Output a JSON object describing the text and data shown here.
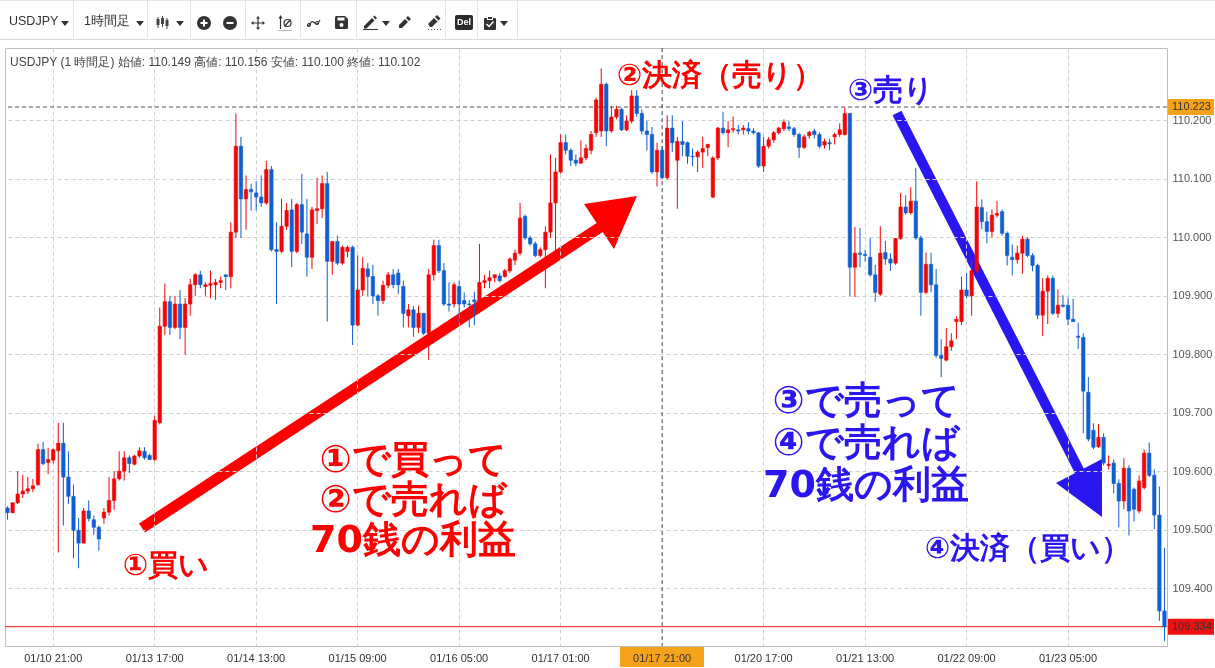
{
  "chart_data": {
    "type": "candlestick",
    "title": "USDJPY (1 時間足) 始値: 110.149 高値: 110.156 安値: 110.100 終値: 110.102",
    "categories": [
      null,
      null,
      null,
      null,
      null,
      null,
      null,
      null,
      null,
      "01/10 21:00",
      null,
      null,
      null,
      null,
      null,
      null,
      null,
      null,
      null,
      null,
      null,
      null,
      null,
      null,
      null,
      null,
      null,
      null,
      null,
      "01/13 17:00",
      null,
      null,
      null,
      null,
      null,
      null,
      null,
      null,
      null,
      null,
      null,
      null,
      null,
      null,
      null,
      null,
      null,
      null,
      null,
      "01/14 13:00",
      null,
      null,
      null,
      null,
      null,
      null,
      null,
      null,
      null,
      null,
      null,
      null,
      null,
      null,
      null,
      null,
      null,
      null,
      null,
      "01/15 09:00",
      null,
      null,
      null,
      null,
      null,
      null,
      null,
      null,
      null,
      null,
      null,
      null,
      null,
      null,
      null,
      null,
      null,
      null,
      null,
      "01/16 05:00",
      null,
      null,
      null,
      null,
      null,
      null,
      null,
      null,
      null,
      null,
      null,
      null,
      null,
      null,
      null,
      null,
      null,
      null,
      null,
      "01/17 01:00",
      null,
      null,
      null,
      null,
      null,
      null,
      null,
      null,
      null,
      null,
      null,
      null,
      null,
      null,
      null,
      null,
      null,
      null,
      null,
      "01/17 21:00",
      null,
      null,
      null,
      null,
      null,
      null,
      null,
      null,
      null,
      null,
      null,
      null,
      null,
      null,
      null,
      null,
      null,
      null,
      null,
      "01/20 17:00",
      null,
      null,
      null,
      null,
      null,
      null,
      null,
      null,
      null,
      null,
      null,
      null,
      null,
      null,
      null,
      null,
      null,
      null,
      null,
      "01/21 13:00",
      null,
      null,
      null,
      null,
      null,
      null,
      null,
      null,
      null,
      null,
      null,
      null,
      null,
      null,
      null,
      null,
      null,
      null,
      null,
      "01/22 09:00",
      null,
      null,
      null,
      null,
      null,
      null,
      null,
      null,
      null,
      null,
      null,
      null,
      null,
      null,
      null,
      null,
      null,
      null,
      null,
      "01/23 05:00",
      null,
      null,
      null,
      null,
      null,
      null,
      null,
      null,
      null,
      null,
      null,
      null,
      null,
      null,
      null,
      null,
      null,
      null,
      null
    ],
    "ohlc": [
      [
        109.537,
        109.54,
        109.517,
        109.529
      ],
      [
        109.529,
        109.547,
        109.528,
        109.546
      ],
      [
        109.546,
        109.6,
        109.544,
        109.561
      ],
      [
        109.561,
        109.594,
        109.554,
        109.566
      ],
      [
        109.566,
        109.59,
        109.561,
        109.57
      ],
      [
        109.57,
        109.587,
        109.564,
        109.575
      ],
      [
        109.577,
        109.647,
        109.575,
        109.637
      ],
      [
        109.637,
        109.65,
        109.61,
        109.613
      ],
      [
        109.615,
        109.64,
        109.595,
        109.62
      ],
      [
        109.619,
        109.639,
        109.613,
        109.637
      ],
      [
        109.635,
        109.683,
        109.461,
        109.648
      ],
      [
        109.648,
        109.683,
        109.507,
        109.59
      ],
      [
        109.59,
        109.634,
        109.544,
        109.557
      ],
      [
        109.557,
        109.577,
        109.451,
        109.499
      ],
      [
        109.499,
        109.52,
        109.434,
        109.477
      ],
      [
        109.477,
        109.537,
        109.477,
        109.532
      ],
      [
        109.532,
        109.55,
        109.514,
        109.519
      ],
      [
        109.517,
        109.524,
        109.491,
        109.504
      ],
      [
        109.504,
        109.507,
        109.464,
        109.484
      ],
      [
        109.52,
        109.537,
        109.51,
        109.53
      ],
      [
        109.53,
        109.59,
        109.524,
        109.55
      ],
      [
        109.55,
        109.6,
        109.534,
        109.587
      ],
      [
        109.587,
        109.634,
        109.584,
        109.6
      ],
      [
        109.6,
        109.634,
        109.584,
        109.623
      ],
      [
        109.623,
        109.627,
        109.597,
        109.613
      ],
      [
        109.612,
        109.628,
        109.61,
        109.626
      ],
      [
        109.626,
        109.641,
        109.623,
        109.635
      ],
      [
        109.634,
        109.641,
        109.62,
        109.623
      ],
      [
        109.627,
        109.63,
        109.619,
        109.62
      ],
      [
        109.62,
        109.695,
        109.617,
        109.687
      ],
      [
        109.683,
        109.88,
        109.68,
        109.848
      ],
      [
        109.848,
        109.921,
        109.833,
        109.89
      ],
      [
        109.89,
        109.9,
        109.833,
        109.846
      ],
      [
        109.846,
        109.9,
        109.843,
        109.886
      ],
      [
        109.886,
        109.91,
        109.826,
        109.846
      ],
      [
        109.846,
        109.896,
        109.8,
        109.886
      ],
      [
        109.886,
        109.929,
        109.866,
        109.919
      ],
      [
        109.919,
        109.939,
        109.9,
        109.936
      ],
      [
        109.936,
        109.943,
        109.913,
        109.919
      ],
      [
        109.916,
        109.923,
        109.9,
        109.919
      ],
      [
        109.918,
        109.943,
        109.896,
        109.921
      ],
      [
        109.919,
        109.929,
        109.893,
        109.923
      ],
      [
        109.923,
        109.933,
        109.913,
        109.926
      ],
      [
        109.936,
        109.936,
        109.91,
        109.933
      ],
      [
        109.933,
        110.026,
        109.913,
        110.009
      ],
      [
        110.009,
        110.212,
        109.999,
        110.156
      ],
      [
        110.156,
        110.172,
        109.999,
        110.066
      ],
      [
        110.066,
        110.106,
        110.013,
        110.082
      ],
      [
        110.082,
        110.092,
        110.046,
        110.078
      ],
      [
        110.076,
        110.096,
        110.046,
        110.069
      ],
      [
        110.069,
        110.106,
        110.052,
        110.059
      ],
      [
        110.059,
        110.131,
        110.056,
        110.116
      ],
      [
        110.116,
        110.122,
        109.976,
        109.979
      ],
      [
        109.979,
        110.026,
        109.886,
        109.976
      ],
      [
        109.976,
        110.066,
        109.973,
        110.019
      ],
      [
        110.019,
        110.059,
        110.013,
        110.046
      ],
      [
        110.047,
        110.066,
        109.949,
        109.976
      ],
      [
        109.976,
        110.059,
        109.973,
        110.056
      ],
      [
        110.056,
        110.109,
        109.989,
        110.009
      ],
      [
        110.006,
        110.066,
        109.933,
        109.966
      ],
      [
        109.966,
        110.052,
        109.946,
        110.047
      ],
      [
        110.046,
        110.102,
        110.023,
        110.049
      ],
      [
        110.049,
        110.106,
        110.033,
        110.092
      ],
      [
        110.092,
        110.112,
        109.856,
        109.959
      ],
      [
        109.959,
        109.993,
        109.936,
        109.993
      ],
      [
        109.993,
        110.003,
        109.953,
        109.956
      ],
      [
        109.956,
        109.986,
        109.953,
        109.983
      ],
      [
        109.976,
        109.986,
        109.966,
        109.983
      ],
      [
        109.983,
        109.986,
        109.816,
        109.85
      ],
      [
        109.85,
        109.969,
        109.848,
        109.91
      ],
      [
        109.91,
        109.966,
        109.9,
        109.947
      ],
      [
        109.946,
        109.956,
        109.9,
        109.933
      ],
      [
        109.933,
        109.953,
        109.886,
        109.9
      ],
      [
        109.9,
        109.903,
        109.866,
        109.892
      ],
      [
        109.892,
        109.926,
        109.886,
        109.918
      ],
      [
        109.918,
        109.941,
        109.913,
        109.936
      ],
      [
        109.936,
        109.946,
        109.913,
        109.919
      ],
      [
        109.939,
        109.946,
        109.903,
        109.919
      ],
      [
        109.916,
        109.926,
        109.846,
        109.87
      ],
      [
        109.866,
        109.886,
        109.846,
        109.876
      ],
      [
        109.876,
        109.883,
        109.83,
        109.846
      ],
      [
        109.846,
        109.883,
        109.836,
        109.87
      ],
      [
        109.87,
        109.87,
        109.833,
        109.836
      ],
      [
        109.836,
        109.946,
        109.79,
        109.936
      ],
      [
        109.936,
        109.996,
        109.926,
        109.986
      ],
      [
        109.986,
        109.996,
        109.939,
        109.943
      ],
      [
        109.943,
        109.956,
        109.883,
        109.886
      ],
      [
        109.886,
        109.923,
        109.873,
        109.884
      ],
      [
        109.886,
        109.923,
        109.88,
        109.919
      ],
      [
        109.916,
        109.926,
        109.853,
        109.886
      ],
      [
        109.892,
        109.906,
        109.88,
        109.886
      ],
      [
        109.886,
        109.893,
        109.846,
        109.885
      ],
      [
        109.893,
        109.907,
        109.85,
        109.89
      ],
      [
        109.89,
        109.989,
        109.87,
        109.923
      ],
      [
        109.923,
        109.936,
        109.913,
        109.926
      ],
      [
        109.926,
        109.943,
        109.913,
        109.931
      ],
      [
        109.931,
        109.936,
        109.923,
        109.936
      ],
      [
        109.934,
        109.939,
        109.923,
        109.926
      ],
      [
        109.933,
        109.946,
        109.931,
        109.943
      ],
      [
        109.943,
        109.966,
        109.939,
        109.963
      ],
      [
        109.961,
        109.979,
        109.953,
        109.973
      ],
      [
        109.973,
        110.059,
        109.969,
        110.033
      ],
      [
        110.036,
        110.039,
        109.996,
        109.999
      ],
      [
        109.999,
        110.003,
        109.986,
        109.989
      ],
      [
        109.989,
        109.993,
        109.966,
        109.969
      ],
      [
        109.969,
        109.983,
        109.966,
        109.979
      ],
      [
        109.979,
        110.019,
        109.913,
        110.009
      ],
      [
        110.009,
        110.142,
        109.999,
        110.059
      ],
      [
        110.059,
        110.136,
        109.956,
        110.112
      ],
      [
        110.112,
        110.176,
        110.109,
        110.162
      ],
      [
        110.162,
        110.176,
        110.142,
        110.149
      ],
      [
        110.149,
        110.152,
        110.122,
        110.132
      ],
      [
        110.132,
        110.142,
        110.122,
        110.127
      ],
      [
        110.127,
        110.166,
        110.126,
        110.136
      ],
      [
        110.136,
        110.159,
        110.132,
        110.152
      ],
      [
        110.149,
        110.182,
        110.142,
        110.176
      ],
      [
        110.179,
        110.239,
        110.172,
        110.235
      ],
      [
        110.182,
        110.289,
        110.172,
        110.262
      ],
      [
        110.262,
        110.265,
        110.156,
        110.182
      ],
      [
        110.182,
        110.225,
        110.179,
        110.206
      ],
      [
        110.206,
        110.225,
        110.202,
        110.219
      ],
      [
        110.219,
        110.222,
        110.182,
        110.184
      ],
      [
        110.184,
        110.209,
        110.182,
        110.199
      ],
      [
        110.199,
        110.252,
        110.195,
        110.242
      ],
      [
        110.242,
        110.252,
        110.206,
        110.212
      ],
      [
        110.212,
        110.219,
        110.176,
        110.182
      ],
      [
        110.182,
        110.199,
        110.149,
        110.176
      ],
      [
        110.176,
        110.189,
        110.109,
        110.112
      ],
      [
        110.112,
        110.162,
        110.087,
        110.149
      ],
      [
        110.149,
        110.156,
        110.1,
        110.102
      ],
      [
        110.102,
        110.209,
        110.099,
        110.187
      ],
      [
        110.187,
        110.209,
        110.146,
        110.162
      ],
      [
        110.132,
        110.172,
        110.049,
        110.164
      ],
      [
        110.164,
        110.199,
        110.139,
        110.159
      ],
      [
        110.162,
        110.164,
        110.126,
        110.139
      ],
      [
        110.139,
        110.152,
        110.122,
        110.138
      ],
      [
        110.138,
        110.149,
        110.112,
        110.146
      ],
      [
        110.146,
        110.172,
        110.119,
        110.152
      ],
      [
        110.154,
        110.16,
        110.139,
        110.159
      ],
      [
        110.069,
        110.139,
        110.067,
        110.136
      ],
      [
        110.136,
        110.189,
        110.132,
        110.187
      ],
      [
        110.187,
        110.215,
        110.176,
        110.179
      ],
      [
        110.179,
        110.199,
        110.154,
        110.184
      ],
      [
        110.184,
        110.207,
        110.179,
        110.186
      ],
      [
        110.184,
        110.192,
        110.176,
        110.182
      ],
      [
        110.184,
        110.192,
        110.176,
        110.187
      ],
      [
        110.186,
        110.197,
        110.176,
        110.182
      ],
      [
        110.182,
        110.187,
        110.176,
        110.179
      ],
      [
        110.179,
        110.18,
        110.119,
        110.122
      ],
      [
        110.122,
        110.172,
        110.112,
        110.156
      ],
      [
        110.156,
        110.172,
        110.152,
        110.167
      ],
      [
        110.167,
        110.182,
        110.162,
        110.179
      ],
      [
        110.179,
        110.189,
        110.176,
        110.187
      ],
      [
        110.186,
        110.202,
        110.182,
        110.197
      ],
      [
        110.189,
        110.199,
        110.182,
        110.186
      ],
      [
        110.186,
        110.189,
        110.172,
        110.176
      ],
      [
        110.176,
        110.179,
        110.136,
        110.154
      ],
      [
        110.154,
        110.176,
        110.151,
        110.172
      ],
      [
        110.174,
        110.182,
        110.169,
        110.18
      ],
      [
        110.182,
        110.186,
        110.169,
        110.176
      ],
      [
        110.176,
        110.18,
        110.152,
        110.156
      ],
      [
        110.158,
        110.169,
        110.152,
        110.164
      ],
      [
        110.162,
        110.169,
        110.149,
        110.16
      ],
      [
        110.172,
        110.179,
        110.159,
        110.176
      ],
      [
        110.176,
        110.195,
        110.172,
        110.184
      ],
      [
        110.176,
        110.222,
        110.174,
        110.212
      ],
      [
        110.212,
        110.213,
        109.9,
        109.949
      ],
      [
        109.949,
        110.018,
        109.898,
        109.973
      ],
      [
        109.973,
        110.016,
        109.949,
        109.971
      ],
      [
        109.971,
        109.979,
        109.959,
        109.969
      ],
      [
        109.966,
        109.999,
        109.933,
        109.936
      ],
      [
        109.936,
        109.953,
        109.89,
        109.906
      ],
      [
        109.903,
        110.019,
        109.9,
        109.973
      ],
      [
        109.974,
        109.994,
        109.953,
        109.963
      ],
      [
        109.963,
        109.973,
        109.943,
        109.956
      ],
      [
        109.956,
        109.999,
        109.953,
        109.998
      ],
      [
        109.998,
        110.076,
        109.996,
        110.052
      ],
      [
        110.052,
        110.072,
        110.039,
        110.042
      ],
      [
        110.042,
        110.086,
        110.039,
        110.062
      ],
      [
        110.062,
        110.119,
        109.996,
        109.999
      ],
      [
        109.999,
        110.003,
        109.866,
        109.906
      ],
      [
        109.906,
        109.974,
        109.903,
        109.954
      ],
      [
        109.954,
        109.974,
        109.906,
        109.919
      ],
      [
        109.919,
        109.946,
        109.794,
        109.798
      ],
      [
        109.798,
        109.826,
        109.761,
        109.793
      ],
      [
        109.79,
        109.845,
        109.788,
        109.813
      ],
      [
        109.813,
        109.836,
        109.806,
        109.823
      ],
      [
        109.856,
        109.865,
        109.826,
        109.86
      ],
      [
        109.856,
        109.933,
        109.85,
        109.91
      ],
      [
        109.91,
        109.939,
        109.896,
        109.9
      ],
      [
        109.9,
        109.961,
        109.866,
        109.943
      ],
      [
        109.943,
        110.096,
        109.939,
        110.052
      ],
      [
        110.051,
        110.065,
        110.014,
        110.027
      ],
      [
        110.027,
        110.044,
        109.99,
        110.01
      ],
      [
        110.01,
        110.048,
        110.0,
        110.038
      ],
      [
        110.038,
        110.062,
        110.034,
        110.041
      ],
      [
        110.044,
        110.048,
        110.003,
        110.007
      ],
      [
        110.007,
        110.01,
        109.952,
        109.969
      ],
      [
        109.966,
        109.988,
        109.935,
        109.962
      ],
      [
        109.962,
        109.986,
        109.955,
        109.973
      ],
      [
        109.973,
        110.003,
        109.938,
        109.997
      ],
      [
        109.997,
        110.0,
        109.966,
        109.969
      ],
      [
        109.969,
        109.973,
        109.942,
        109.952
      ],
      [
        109.952,
        109.955,
        109.86,
        109.867
      ],
      [
        109.867,
        109.93,
        109.831,
        109.908
      ],
      [
        109.908,
        109.935,
        109.852,
        109.93
      ],
      [
        109.93,
        109.935,
        109.867,
        109.87
      ],
      [
        109.87,
        109.911,
        109.863,
        109.884
      ],
      [
        109.884,
        109.901,
        109.88,
        109.882
      ],
      [
        109.884,
        109.897,
        109.85,
        109.86
      ],
      [
        109.86,
        109.895,
        109.856,
        109.856
      ],
      [
        109.831,
        109.854,
        109.809,
        109.829
      ],
      [
        109.829,
        109.836,
        109.665,
        109.737
      ],
      [
        109.735,
        109.761,
        109.651,
        109.655
      ],
      [
        109.67,
        109.682,
        109.638,
        109.641
      ],
      [
        109.642,
        109.681,
        109.64,
        109.658
      ],
      [
        109.658,
        109.665,
        109.61,
        109.614
      ],
      [
        109.61,
        109.627,
        109.603,
        109.612
      ],
      [
        109.614,
        109.62,
        109.562,
        109.579
      ],
      [
        109.579,
        109.586,
        109.504,
        109.549
      ],
      [
        109.549,
        109.622,
        109.535,
        109.605
      ],
      [
        109.605,
        109.61,
        109.49,
        109.532
      ],
      [
        109.569,
        109.572,
        109.514,
        109.535
      ],
      [
        109.532,
        109.593,
        109.528,
        109.583
      ],
      [
        109.572,
        109.637,
        109.569,
        109.631
      ],
      [
        109.631,
        109.649,
        109.59,
        109.593
      ],
      [
        109.593,
        109.603,
        109.501,
        109.525
      ],
      [
        109.525,
        109.574,
        109.344,
        109.361
      ],
      [
        109.361,
        109.469,
        109.309,
        109.334
      ]
    ],
    "colors": [
      "#0f5fd2",
      "#f20505",
      "#f20505",
      "#f20505",
      "#f20505",
      "#f20505",
      "#f20505",
      "#0f5fd2",
      "#f20505",
      "#f20505",
      "#f20505",
      "#0f5fd2",
      "#0f5fd2",
      "#0f5fd2",
      "#0f5fd2",
      "#f20505",
      "#0f5fd2",
      "#0f5fd2",
      "#0f5fd2",
      "#f20505",
      "#f20505",
      "#f20505",
      "#f20505",
      "#f20505",
      "#0f5fd2",
      "#f20505",
      "#f20505",
      "#0f5fd2",
      "#0f5fd2",
      "#f20505",
      "#f20505",
      "#f20505",
      "#0f5fd2",
      "#f20505",
      "#0f5fd2",
      "#f20505",
      "#f20505",
      "#f20505",
      "#0f5fd2",
      "#f20505",
      "#f20505",
      "#f20505",
      "#f20505",
      "#0f5fd2",
      "#f20505",
      "#f20505",
      "#0f5fd2",
      "#f20505",
      "#0f5fd2",
      "#0f5fd2",
      "#0f5fd2",
      "#f20505",
      "#0f5fd2",
      "#0f5fd2",
      "#f20505",
      "#f20505",
      "#0f5fd2",
      "#f20505",
      "#0f5fd2",
      "#0f5fd2",
      "#f20505",
      "#f20505",
      "#f20505",
      "#0f5fd2",
      "#f20505",
      "#0f5fd2",
      "#f20505",
      "#f20505",
      "#0f5fd2",
      "#f20505",
      "#f20505",
      "#0f5fd2",
      "#0f5fd2",
      "#0f5fd2",
      "#f20505",
      "#f20505",
      "#0f5fd2",
      "#0f5fd2",
      "#0f5fd2",
      "#f20505",
      "#0f5fd2",
      "#f20505",
      "#0f5fd2",
      "#f20505",
      "#f20505",
      "#0f5fd2",
      "#0f5fd2",
      "#0f5fd2",
      "#f20505",
      "#0f5fd2",
      "#0f5fd2",
      "#0f5fd2",
      "#0f5fd2",
      "#f20505",
      "#f20505",
      "#f20505",
      "#f20505",
      "#0f5fd2",
      "#f20505",
      "#f20505",
      "#f20505",
      "#f20505",
      "#0f5fd2",
      "#0f5fd2",
      "#0f5fd2",
      "#f20505",
      "#f20505",
      "#f20505",
      "#f20505",
      "#f20505",
      "#0f5fd2",
      "#0f5fd2",
      "#0f5fd2",
      "#f20505",
      "#f20505",
      "#f20505",
      "#f20505",
      "#f20505",
      "#0f5fd2",
      "#f20505",
      "#f20505",
      "#0f5fd2",
      "#f20505",
      "#f20505",
      "#0f5fd2",
      "#0f5fd2",
      "#0f5fd2",
      "#0f5fd2",
      "#f20505",
      "#0f5fd2",
      "#f20505",
      "#0f5fd2",
      "#f20505",
      "#0f5fd2",
      "#0f5fd2",
      "#0f5fd2",
      "#f20505",
      "#f20505",
      "#f20505",
      "#f20505",
      "#f20505",
      "#0f5fd2",
      "#f20505",
      "#f20505",
      "#0f5fd2",
      "#f20505",
      "#0f5fd2",
      "#0f5fd2",
      "#0f5fd2",
      "#f20505",
      "#f20505",
      "#f20505",
      "#f20505",
      "#f20505",
      "#0f5fd2",
      "#0f5fd2",
      "#0f5fd2",
      "#f20505",
      "#f20505",
      "#0f5fd2",
      "#0f5fd2",
      "#f20505",
      "#0f5fd2",
      "#f20505",
      "#f20505",
      "#f20505",
      "#0f5fd2",
      "#f20505",
      "#0f5fd2",
      "#0f5fd2",
      "#0f5fd2",
      "#0f5fd2",
      "#f20505",
      "#0f5fd2",
      "#0f5fd2",
      "#f20505",
      "#f20505",
      "#0f5fd2",
      "#f20505",
      "#0f5fd2",
      "#0f5fd2",
      "#f20505",
      "#0f5fd2",
      "#0f5fd2",
      "#0f5fd2",
      "#f20505",
      "#f20505",
      "#f20505",
      "#f20505",
      "#0f5fd2",
      "#f20505",
      "#f20505",
      "#0f5fd2",
      "#0f5fd2",
      "#f20505",
      "#f20505",
      "#0f5fd2",
      "#0f5fd2",
      "#0f5fd2",
      "#f20505",
      "#f20505",
      "#0f5fd2",
      "#0f5fd2",
      "#0f5fd2",
      "#f20505",
      "#f20505",
      "#0f5fd2",
      "#f20505",
      "#0f5fd2",
      "#0f5fd2",
      "#0f5fd2",
      "#0f5fd2",
      "#0f5fd2",
      "#0f5fd2",
      "#0f5fd2",
      "#f20505",
      "#0f5fd2",
      "#f20505",
      "#0f5fd2",
      "#0f5fd2",
      "#f20505",
      "#0f5fd2",
      "#0f5fd2",
      "#f20505",
      "#f20505",
      "#0f5fd2",
      "#0f5fd2",
      "#0f5fd2",
      "#0f5fd2"
    ],
    "ylim": [
      109.301,
      110.324
    ],
    "yticks": [
      {
        "value": 109.4,
        "label": "109.400"
      },
      {
        "value": 109.5,
        "label": "109.500"
      },
      {
        "value": 109.6,
        "label": "109.600"
      },
      {
        "value": 109.7,
        "label": "109.700"
      },
      {
        "value": 109.8,
        "label": "109.800"
      },
      {
        "value": 109.9,
        "label": "109.900"
      },
      {
        "value": 110.0,
        "label": "110.000"
      },
      {
        "value": 110.1,
        "label": "110.100"
      },
      {
        "value": 110.2,
        "label": "110.200"
      }
    ],
    "grid": true,
    "ref_lines": [
      {
        "axis": "y",
        "value": 110.223,
        "label": "110.223",
        "color": "#555555",
        "line_style": "dashed"
      },
      {
        "axis": "y",
        "value": 109.334,
        "label": "109.334",
        "color": "#f01010",
        "line_style": "solid"
      },
      {
        "axis": "x",
        "value": "01/17 21:00",
        "color": "#555555",
        "line_style": "dashed"
      }
    ],
    "annotations": [
      "USDJPY",
      "1時間足",
      "Del",
      "①買い",
      "②決済（売り）",
      "③売り",
      "④決済（買い）",
      "①で買って\n②で売れば\n70銭の利益",
      "③で売って\n④で売れば\n70銭の利益"
    ]
  }
}
